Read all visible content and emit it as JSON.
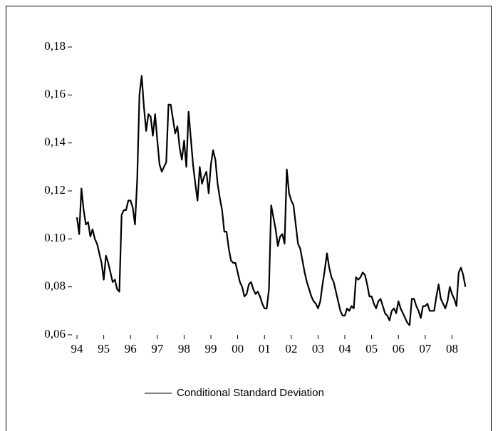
{
  "chart_data": {
    "type": "line",
    "x": [
      1994,
      1994.083,
      1994.167,
      1994.25,
      1994.333,
      1994.417,
      1994.5,
      1994.583,
      1994.667,
      1994.75,
      1994.833,
      1994.917,
      1995,
      1995.083,
      1995.167,
      1995.25,
      1995.333,
      1995.417,
      1995.5,
      1995.583,
      1995.667,
      1995.75,
      1995.833,
      1995.917,
      1996,
      1996.083,
      1996.167,
      1996.25,
      1996.333,
      1996.417,
      1996.5,
      1996.583,
      1996.667,
      1996.75,
      1996.833,
      1996.917,
      1997,
      1997.083,
      1997.167,
      1997.25,
      1997.333,
      1997.417,
      1997.5,
      1997.583,
      1997.667,
      1997.75,
      1997.833,
      1997.917,
      1998,
      1998.083,
      1998.167,
      1998.25,
      1998.333,
      1998.417,
      1998.5,
      1998.583,
      1998.667,
      1998.75,
      1998.833,
      1998.917,
      1999,
      1999.083,
      1999.167,
      1999.25,
      1999.333,
      1999.417,
      1999.5,
      1999.583,
      1999.667,
      1999.75,
      1999.833,
      1999.917,
      2000,
      2000.083,
      2000.167,
      2000.25,
      2000.333,
      2000.417,
      2000.5,
      2000.583,
      2000.667,
      2000.75,
      2000.833,
      2000.917,
      2001,
      2001.083,
      2001.167,
      2001.25,
      2001.333,
      2001.417,
      2001.5,
      2001.583,
      2001.667,
      2001.75,
      2001.833,
      2001.917,
      2002,
      2002.083,
      2002.167,
      2002.25,
      2002.333,
      2002.417,
      2002.5,
      2002.583,
      2002.667,
      2002.75,
      2002.833,
      2002.917,
      2003,
      2003.083,
      2003.167,
      2003.25,
      2003.333,
      2003.417,
      2003.5,
      2003.583,
      2003.667,
      2003.75,
      2003.833,
      2003.917,
      2004,
      2004.083,
      2004.167,
      2004.25,
      2004.333,
      2004.417,
      2004.5,
      2004.583,
      2004.667,
      2004.75,
      2004.833,
      2004.917,
      2005,
      2005.083,
      2005.167,
      2005.25,
      2005.333,
      2005.417,
      2005.5,
      2005.583,
      2005.667,
      2005.75,
      2005.833,
      2005.917,
      2006,
      2006.083,
      2006.167,
      2006.25,
      2006.333,
      2006.417,
      2006.5,
      2006.583,
      2006.667,
      2006.75,
      2006.833,
      2006.917,
      2007,
      2007.083,
      2007.167,
      2007.25,
      2007.333,
      2007.417,
      2007.5,
      2007.583,
      2007.667,
      2007.75,
      2007.833,
      2007.917,
      2008,
      2008.083,
      2008.167,
      2008.25,
      2008.333,
      2008.417,
      2008.5
    ],
    "series": [
      {
        "name": "Conditional Standard Deviation",
        "color": "#000000",
        "values": [
          0.109,
          0.102,
          0.121,
          0.112,
          0.106,
          0.107,
          0.101,
          0.104,
          0.1,
          0.098,
          0.094,
          0.09,
          0.083,
          0.093,
          0.09,
          0.086,
          0.082,
          0.083,
          0.079,
          0.078,
          0.11,
          0.112,
          0.112,
          0.116,
          0.116,
          0.113,
          0.106,
          0.125,
          0.16,
          0.168,
          0.155,
          0.145,
          0.152,
          0.151,
          0.143,
          0.152,
          0.141,
          0.131,
          0.128,
          0.13,
          0.132,
          0.156,
          0.156,
          0.15,
          0.144,
          0.147,
          0.138,
          0.133,
          0.141,
          0.13,
          0.153,
          0.142,
          0.131,
          0.123,
          0.116,
          0.13,
          0.123,
          0.126,
          0.128,
          0.119,
          0.131,
          0.137,
          0.133,
          0.123,
          0.117,
          0.112,
          0.103,
          0.103,
          0.096,
          0.091,
          0.09,
          0.09,
          0.086,
          0.082,
          0.08,
          0.076,
          0.077,
          0.081,
          0.082,
          0.079,
          0.077,
          0.078,
          0.076,
          0.073,
          0.071,
          0.071,
          0.079,
          0.114,
          0.109,
          0.104,
          0.097,
          0.101,
          0.102,
          0.098,
          0.129,
          0.119,
          0.116,
          0.114,
          0.106,
          0.098,
          0.096,
          0.091,
          0.086,
          0.082,
          0.079,
          0.076,
          0.074,
          0.073,
          0.071,
          0.074,
          0.081,
          0.087,
          0.094,
          0.088,
          0.084,
          0.082,
          0.078,
          0.074,
          0.07,
          0.068,
          0.068,
          0.071,
          0.07,
          0.072,
          0.071,
          0.084,
          0.083,
          0.084,
          0.086,
          0.085,
          0.081,
          0.076,
          0.076,
          0.073,
          0.071,
          0.074,
          0.075,
          0.072,
          0.069,
          0.068,
          0.066,
          0.07,
          0.071,
          0.069,
          0.074,
          0.071,
          0.069,
          0.067,
          0.065,
          0.064,
          0.075,
          0.075,
          0.072,
          0.07,
          0.067,
          0.072,
          0.072,
          0.073,
          0.07,
          0.07,
          0.07,
          0.076,
          0.081,
          0.075,
          0.073,
          0.071,
          0.074,
          0.08,
          0.077,
          0.075,
          0.072,
          0.086,
          0.088,
          0.085,
          0.08
        ]
      }
    ],
    "xlim": [
      1993.8,
      2008.6
    ],
    "xticks": [
      {
        "value": 1994,
        "label": "94"
      },
      {
        "value": 1995,
        "label": "95"
      },
      {
        "value": 1996,
        "label": "96"
      },
      {
        "value": 1997,
        "label": "97"
      },
      {
        "value": 1998,
        "label": "98"
      },
      {
        "value": 1999,
        "label": "99"
      },
      {
        "value": 2000,
        "label": "00"
      },
      {
        "value": 2001,
        "label": "01"
      },
      {
        "value": 2002,
        "label": "02"
      },
      {
        "value": 2003,
        "label": "03"
      },
      {
        "value": 2004,
        "label": "04"
      },
      {
        "value": 2005,
        "label": "05"
      },
      {
        "value": 2006,
        "label": "06"
      },
      {
        "value": 2007,
        "label": "07"
      },
      {
        "value": 2008,
        "label": "08"
      }
    ],
    "ylim": [
      0.06,
      0.18
    ],
    "yticks": [
      {
        "value": 0.06,
        "label": "0,06"
      },
      {
        "value": 0.08,
        "label": "0,08"
      },
      {
        "value": 0.1,
        "label": "0.10"
      },
      {
        "value": 0.12,
        "label": "0,12"
      },
      {
        "value": 0.14,
        "label": "0,14"
      },
      {
        "value": 0.16,
        "label": "0,16"
      },
      {
        "value": 0.18,
        "label": "0,18"
      }
    ],
    "grid": false
  }
}
